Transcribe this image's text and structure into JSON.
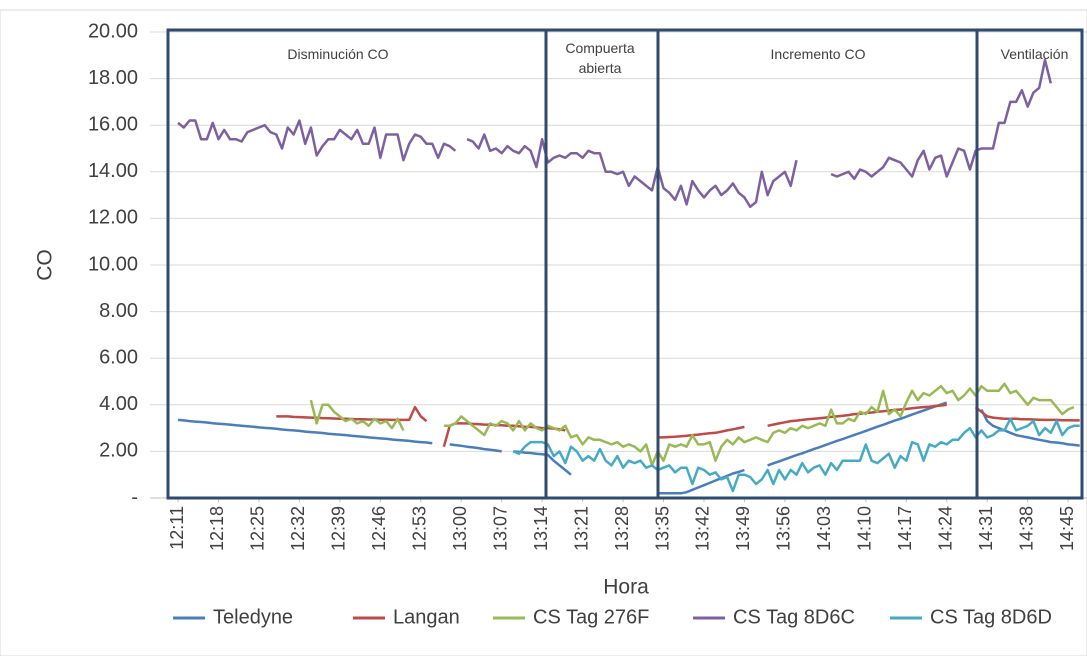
{
  "chart_data": {
    "type": "line",
    "y_label": "CO",
    "x_label": "Hora",
    "annotations": [
      "Disminución CO",
      "Compuerta abierta",
      "Incremento CO",
      "Ventilación"
    ],
    "categories": [
      "12:11",
      null,
      null,
      null,
      null,
      null,
      null,
      "12:18",
      null,
      null,
      null,
      null,
      null,
      null,
      "12:25",
      null,
      null,
      null,
      null,
      null,
      null,
      "12:32",
      null,
      null,
      null,
      null,
      null,
      null,
      "12:39",
      null,
      null,
      null,
      null,
      null,
      null,
      "12:46",
      null,
      null,
      null,
      null,
      null,
      null,
      "12:53",
      null,
      null,
      null,
      null,
      null,
      null,
      "13:00",
      null,
      null,
      null,
      null,
      null,
      null,
      "13:07",
      null,
      null,
      null,
      null,
      null,
      null,
      "13:14",
      null,
      null,
      null,
      null,
      null,
      null,
      "13:21",
      null,
      null,
      null,
      null,
      null,
      null,
      "13:28",
      null,
      null,
      null,
      null,
      null,
      null,
      "13:35",
      null,
      null,
      null,
      null,
      null,
      null,
      "13:42",
      null,
      null,
      null,
      null,
      null,
      null,
      "13:49",
      null,
      null,
      null,
      null,
      null,
      null,
      "13:56",
      null,
      null,
      null,
      null,
      null,
      null,
      "14:03",
      null,
      null,
      null,
      null,
      null,
      null,
      "14:10",
      null,
      null,
      null,
      null,
      null,
      null,
      "14:17",
      null,
      null,
      null,
      null,
      null,
      null,
      "14:24",
      null,
      null,
      null,
      null,
      null,
      null,
      "14:31",
      null,
      null,
      null,
      null,
      null,
      null,
      "14:38",
      null,
      null,
      null,
      null,
      null,
      null,
      "14:45",
      null,
      null
    ],
    "ylim": [
      0,
      20
    ],
    "yticks": [
      {
        "value": 0,
        "label": "-"
      },
      {
        "value": 2,
        "label": "2.00"
      },
      {
        "value": 4,
        "label": "4.00"
      },
      {
        "value": 6,
        "label": "6.00"
      },
      {
        "value": 8,
        "label": "8.00"
      },
      {
        "value": 10,
        "label": "10.00"
      },
      {
        "value": 12,
        "label": "12.00"
      },
      {
        "value": 14,
        "label": "14.00"
      },
      {
        "value": 16,
        "label": "16.00"
      },
      {
        "value": 18,
        "label": "18.00"
      },
      {
        "value": 20,
        "label": "20.00"
      }
    ],
    "grid": true,
    "legend": "bottom",
    "series": [
      {
        "name": "Teledyne",
        "color": "#4a7ebb",
        "values": [
          3.35,
          3.33,
          3.3,
          3.28,
          3.26,
          3.24,
          3.21,
          3.19,
          3.17,
          3.15,
          3.12,
          3.1,
          3.08,
          3.06,
          3.03,
          3.01,
          2.99,
          2.97,
          2.94,
          2.92,
          2.9,
          2.88,
          2.85,
          2.83,
          2.81,
          2.79,
          2.76,
          2.74,
          2.72,
          2.7,
          2.67,
          2.65,
          2.63,
          2.6,
          2.58,
          2.56,
          2.54,
          2.51,
          2.49,
          2.47,
          2.45,
          2.42,
          2.4,
          2.38,
          2.35,
          null,
          null,
          2.3,
          2.27,
          2.24,
          2.2,
          2.17,
          2.14,
          2.1,
          2.07,
          2.04,
          2.0,
          null,
          2.0,
          1.98,
          1.95,
          1.93,
          1.9,
          1.88,
          1.85,
          1.6,
          1.4,
          1.2,
          1.0,
          null,
          null,
          null,
          null,
          null,
          null,
          null,
          null,
          null,
          null,
          null,
          null,
          null,
          null,
          0.2,
          0.2,
          0.2,
          0.2,
          0.2,
          0.25,
          0.35,
          0.45,
          0.55,
          0.65,
          0.75,
          0.85,
          0.95,
          1.05,
          1.12,
          1.2,
          null,
          null,
          null,
          1.4,
          1.49,
          1.57,
          1.66,
          1.75,
          1.84,
          1.92,
          2.01,
          2.1,
          2.18,
          2.27,
          2.36,
          2.45,
          2.53,
          2.62,
          2.71,
          2.79,
          2.88,
          2.97,
          3.06,
          3.14,
          3.23,
          3.32,
          3.4,
          3.49,
          3.58,
          3.67,
          3.75,
          3.84,
          3.93,
          4.01,
          4.1,
          null,
          null,
          null,
          null,
          null,
          3.8,
          3.3,
          3.1,
          3.0,
          2.9,
          2.8,
          2.7,
          2.65,
          2.6,
          2.55,
          2.5,
          2.45,
          2.4,
          2.38,
          2.35,
          2.3,
          2.28,
          2.25
        ]
      },
      {
        "name": "Langan",
        "color": "#be4b48",
        "values": [
          null,
          null,
          null,
          null,
          null,
          null,
          null,
          null,
          null,
          null,
          null,
          null,
          null,
          null,
          null,
          null,
          null,
          3.5,
          3.5,
          3.5,
          3.48,
          3.47,
          3.46,
          3.45,
          3.44,
          3.43,
          3.42,
          3.41,
          3.4,
          3.4,
          3.39,
          3.38,
          3.38,
          3.37,
          3.37,
          3.36,
          3.36,
          3.35,
          3.35,
          3.35,
          3.35,
          3.9,
          3.5,
          3.3,
          null,
          null,
          2.2,
          3.1,
          3.2,
          3.2,
          3.2,
          3.18,
          3.17,
          3.15,
          3.15,
          3.13,
          3.12,
          3.1,
          3.1,
          3.08,
          3.06,
          3.05,
          3.03,
          3.0,
          3.0,
          2.98,
          2.95,
          2.9,
          null,
          null,
          null,
          null,
          null,
          null,
          null,
          null,
          null,
          null,
          null,
          null,
          null,
          null,
          null,
          2.6,
          2.6,
          2.62,
          2.63,
          2.65,
          2.67,
          2.7,
          2.72,
          2.75,
          2.78,
          2.8,
          2.85,
          2.9,
          2.95,
          3.0,
          3.05,
          null,
          null,
          null,
          3.1,
          3.15,
          3.2,
          3.25,
          3.3,
          3.32,
          3.35,
          3.38,
          3.4,
          3.42,
          3.45,
          3.48,
          3.5,
          3.53,
          3.56,
          3.6,
          3.62,
          3.65,
          3.67,
          3.7,
          3.72,
          3.75,
          3.78,
          3.8,
          3.82,
          3.85,
          3.88,
          3.9,
          3.92,
          3.95,
          3.97,
          4.0,
          null,
          null,
          null,
          null,
          3.9,
          3.7,
          3.5,
          3.45,
          3.42,
          3.4,
          3.4,
          3.4,
          3.38,
          3.38,
          3.37,
          3.36,
          3.35,
          3.35,
          3.35,
          3.34,
          3.34,
          3.33,
          3.33
        ]
      },
      {
        "name": "CS Tag 276F",
        "color": "#98b954",
        "values": [
          null,
          null,
          null,
          null,
          null,
          null,
          null,
          null,
          null,
          null,
          null,
          null,
          null,
          null,
          null,
          null,
          null,
          null,
          null,
          null,
          null,
          null,
          null,
          4.2,
          3.2,
          4.0,
          4.0,
          3.7,
          3.5,
          3.3,
          3.4,
          3.2,
          3.3,
          3.1,
          3.4,
          3.2,
          3.3,
          3.0,
          3.4,
          2.9,
          null,
          null,
          null,
          null,
          null,
          null,
          3.1,
          3.1,
          3.2,
          3.5,
          3.3,
          3.1,
          2.9,
          2.7,
          3.2,
          3.1,
          3.3,
          3.2,
          2.9,
          3.3,
          2.9,
          3.2,
          3.0,
          2.9,
          3.1,
          3.0,
          2.9,
          3.1,
          2.6,
          2.7,
          2.3,
          2.6,
          2.5,
          2.5,
          2.4,
          2.3,
          2.4,
          2.2,
          2.3,
          2.2,
          2.0,
          2.3,
          1.4,
          2.0,
          1.6,
          2.3,
          2.2,
          2.3,
          2.2,
          2.7,
          2.3,
          2.3,
          2.4,
          1.6,
          2.2,
          2.5,
          2.3,
          2.6,
          2.4,
          2.5,
          2.6,
          2.5,
          2.4,
          2.8,
          2.9,
          2.8,
          3.0,
          2.9,
          3.1,
          3.0,
          3.1,
          3.2,
          3.1,
          3.8,
          3.2,
          3.2,
          3.4,
          3.3,
          3.7,
          3.6,
          3.9,
          3.7,
          4.6,
          3.6,
          3.8,
          3.5,
          4.1,
          4.6,
          4.2,
          4.5,
          4.4,
          4.6,
          4.8,
          4.5,
          4.6,
          4.2,
          4.4,
          4.7,
          4.4,
          4.8,
          4.6,
          4.6,
          4.6,
          4.9,
          4.5,
          4.6,
          4.3,
          4.0,
          4.3,
          4.2,
          4.2,
          4.2,
          3.9,
          3.6,
          3.8,
          3.9,
          null
        ]
      },
      {
        "name": "CS Tag 8D6C",
        "color": "#7d60a0",
        "values": [
          16.1,
          15.9,
          16.2,
          16.2,
          15.4,
          15.4,
          16.1,
          15.4,
          15.8,
          15.4,
          15.4,
          15.3,
          15.7,
          15.8,
          15.9,
          16.0,
          15.7,
          15.6,
          15.0,
          15.9,
          15.6,
          16.2,
          15.2,
          15.9,
          14.7,
          15.1,
          15.4,
          15.4,
          15.8,
          15.6,
          15.4,
          15.8,
          15.2,
          15.2,
          15.9,
          14.6,
          15.6,
          15.6,
          15.6,
          14.5,
          15.2,
          15.6,
          15.5,
          15.2,
          15.2,
          14.6,
          15.2,
          15.1,
          14.9,
          null,
          15.4,
          15.3,
          15.0,
          15.6,
          14.9,
          15.0,
          14.8,
          15.1,
          14.9,
          14.8,
          15.1,
          14.9,
          14.2,
          15.4,
          14.4,
          14.6,
          14.7,
          14.6,
          14.8,
          14.8,
          14.6,
          14.9,
          14.8,
          14.8,
          14.0,
          14.0,
          13.9,
          14.0,
          13.4,
          13.8,
          13.6,
          13.4,
          13.2,
          14.2,
          13.3,
          13.1,
          12.8,
          13.4,
          12.6,
          13.6,
          13.2,
          12.9,
          13.2,
          13.4,
          13.0,
          13.2,
          13.5,
          13.1,
          12.9,
          12.5,
          12.7,
          14.0,
          13.0,
          13.6,
          13.8,
          14.0,
          13.4,
          14.5,
          null,
          null,
          null,
          null,
          null,
          13.9,
          13.8,
          13.9,
          14.0,
          13.7,
          14.1,
          14.0,
          13.8,
          14.0,
          14.2,
          14.6,
          14.5,
          14.4,
          14.1,
          13.8,
          14.5,
          14.9,
          14.1,
          14.6,
          14.7,
          13.8,
          14.4,
          15.0,
          14.9,
          14.1,
          14.9,
          15.0,
          15.0,
          15.0,
          16.1,
          16.1,
          17.0,
          17.0,
          17.5,
          16.8,
          17.4,
          17.6,
          18.8,
          17.8,
          null,
          null,
          null,
          null,
          null
        ]
      },
      {
        "name": "CS Tag 8D6D",
        "color": "#46aac5",
        "values": [
          null,
          null,
          null,
          null,
          null,
          null,
          null,
          null,
          null,
          null,
          null,
          null,
          null,
          null,
          null,
          null,
          null,
          null,
          null,
          null,
          null,
          null,
          null,
          null,
          null,
          null,
          null,
          null,
          null,
          null,
          null,
          null,
          null,
          null,
          null,
          null,
          null,
          null,
          null,
          null,
          null,
          null,
          null,
          null,
          null,
          null,
          null,
          null,
          null,
          null,
          null,
          null,
          null,
          null,
          null,
          null,
          null,
          null,
          2.0,
          1.9,
          2.2,
          2.4,
          2.4,
          2.4,
          2.3,
          1.8,
          2.0,
          1.5,
          2.2,
          2.0,
          1.6,
          1.8,
          1.6,
          2.1,
          1.6,
          1.4,
          1.8,
          1.3,
          1.6,
          1.5,
          1.6,
          1.3,
          1.4,
          1.2,
          1.3,
          1.4,
          1.1,
          1.3,
          1.3,
          0.6,
          1.3,
          1.2,
          1.0,
          1.1,
          0.8,
          0.9,
          0.3,
          1.0,
          1.0,
          0.9,
          0.6,
          0.8,
          1.2,
          0.6,
          1.2,
          0.8,
          1.2,
          1.0,
          1.5,
          1.1,
          1.3,
          1.4,
          1.0,
          1.5,
          1.2,
          1.6,
          1.6,
          1.6,
          1.6,
          2.3,
          1.6,
          1.5,
          1.7,
          1.9,
          1.3,
          1.8,
          1.6,
          2.4,
          2.3,
          1.6,
          2.3,
          2.2,
          2.4,
          2.3,
          2.5,
          2.5,
          2.8,
          3.0,
          2.6,
          2.9,
          2.6,
          2.7,
          2.9,
          2.9,
          3.4,
          2.9,
          3.0,
          3.1,
          3.3,
          2.7,
          3.0,
          2.8,
          3.3,
          2.7,
          3.0,
          3.1,
          3.1
        ]
      }
    ]
  }
}
